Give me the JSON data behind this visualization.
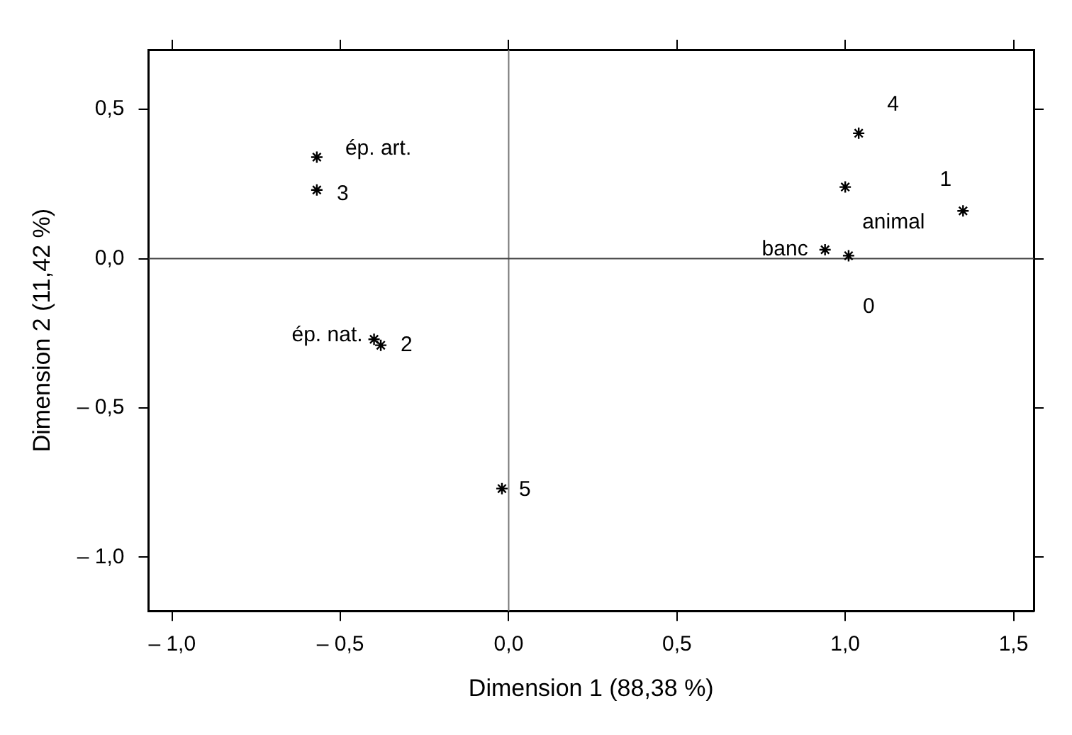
{
  "chart_data": {
    "type": "scatter",
    "xlabel": "Dimension 1 (88,38 %)",
    "ylabel": "Dimension 2 (11,42 %)",
    "series": [
      {
        "color": "#000000",
        "x": [
          -0.57,
          -0.57,
          -0.4,
          -0.38,
          -0.02,
          1.04,
          1.0,
          1.35,
          0.94,
          1.01
        ],
        "values": [
          0.34,
          0.23,
          -0.27,
          -0.29,
          -0.77,
          0.42,
          0.24,
          0.16,
          0.03,
          0.01
        ]
      }
    ],
    "marker": "cross",
    "grid": false,
    "legend": false,
    "xlim": [
      -1.07,
      1.56
    ],
    "ylim": [
      -1.18,
      0.7
    ],
    "xticks": [
      {
        "value": -1,
        "label": "– 1,0"
      },
      {
        "value": -0.5,
        "label": "– 0,5"
      },
      {
        "value": 0,
        "label": "0,0"
      },
      {
        "value": 0.5,
        "label": "0,5"
      },
      {
        "value": 1,
        "label": "1,0"
      },
      {
        "value": 1.5,
        "label": "1,5"
      }
    ],
    "yticks": [
      {
        "value": -1,
        "label": "– 1,0"
      },
      {
        "value": -0.5,
        "label": "– 0,5"
      },
      {
        "value": 0,
        "label": "0,0"
      },
      {
        "value": 0.5,
        "label": "0,5"
      }
    ],
    "ref_lines": [
      {
        "axis": "x",
        "value": 0,
        "color": "#777777"
      },
      {
        "axis": "y",
        "value": 0,
        "color": "#444444"
      }
    ],
    "annotations": [
      {
        "text": "ép. art.",
        "x": -0.57,
        "y": 0.34
      },
      {
        "text": "3",
        "x": -0.57,
        "y": 0.23
      },
      {
        "text": "ép. nat.",
        "x": -0.4,
        "y": -0.27
      },
      {
        "text": "2",
        "x": -0.38,
        "y": -0.29
      },
      {
        "text": "5",
        "x": -0.02,
        "y": -0.77
      },
      {
        "text": "4",
        "x": 1.04,
        "y": 0.42
      },
      {
        "text": "animal",
        "x": 1.0,
        "y": 0.24
      },
      {
        "text": "1",
        "x": 1.35,
        "y": 0.16
      },
      {
        "text": "banc",
        "x": 0.94,
        "y": 0.03
      },
      {
        "text": "0",
        "x": 1.01,
        "y": 0.01
      }
    ]
  }
}
